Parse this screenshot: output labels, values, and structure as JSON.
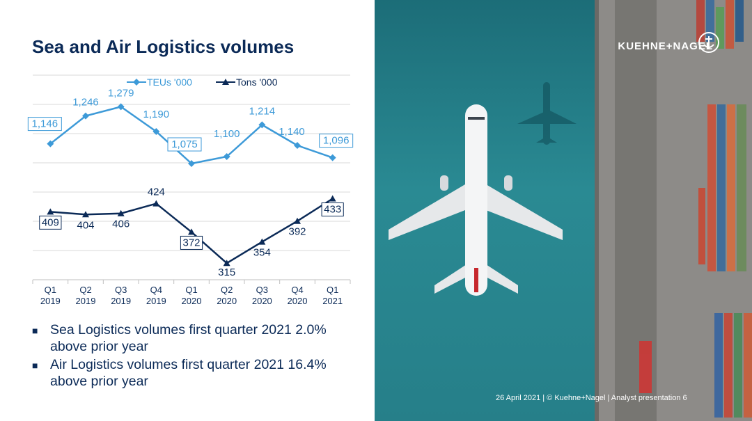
{
  "title": "Sea and Air Logistics volumes",
  "chart_data": {
    "type": "line",
    "categories": [
      "Q1 2019",
      "Q2 2019",
      "Q3 2019",
      "Q4 2019",
      "Q1 2020",
      "Q2 2020",
      "Q3 2020",
      "Q4 2020",
      "Q1 2021"
    ],
    "category_lines": [
      [
        "Q1",
        "2019"
      ],
      [
        "Q2",
        "2019"
      ],
      [
        "Q3",
        "2019"
      ],
      [
        "Q4",
        "2019"
      ],
      [
        "Q1",
        "2020"
      ],
      [
        "Q2",
        "2020"
      ],
      [
        "Q3",
        "2020"
      ],
      [
        "Q4",
        "2020"
      ],
      [
        "Q1",
        "2021"
      ]
    ],
    "series": [
      {
        "name": "TEUs '000",
        "values": [
          1146,
          1246,
          1279,
          1190,
          1075,
          1100,
          1214,
          1140,
          1096
        ],
        "labels": [
          "1,146",
          "1,246",
          "1,279",
          "1,190",
          "1,075",
          "1,100",
          "1,214",
          "1,140",
          "1,096"
        ],
        "boxed": [
          true,
          false,
          false,
          false,
          true,
          false,
          false,
          false,
          true
        ],
        "color": "#3d9ad8",
        "marker": "diamond",
        "ylim": [
          1050,
          1300
        ]
      },
      {
        "name": "Tons '000",
        "values": [
          409,
          404,
          406,
          424,
          372,
          315,
          354,
          392,
          433
        ],
        "labels": [
          "409",
          "404",
          "406",
          "424",
          "372",
          "315",
          "354",
          "392",
          "433"
        ],
        "boxed": [
          true,
          false,
          false,
          false,
          true,
          false,
          false,
          false,
          true
        ],
        "color": "#0b2a57",
        "marker": "triangle",
        "ylim": [
          300,
          440
        ]
      }
    ],
    "legend": "top-center",
    "grid": true,
    "title": "",
    "xlabel": "",
    "ylabel": ""
  },
  "bullets": [
    "Sea Logistics volumes first quarter 2021 2.0% above prior year",
    "Air Logistics volumes first quarter 2021 16.4% above prior year"
  ],
  "logo": {
    "text": "KUEHNE+NAGEL",
    "icon": "anchor-icon"
  },
  "footer": "26 April 2021   |   © Kuehne+Nagel   |   Analyst presentation   6",
  "colors": {
    "navy": "#0b2a57",
    "light_blue": "#3d9ad8",
    "sea": "#2a8a93"
  }
}
